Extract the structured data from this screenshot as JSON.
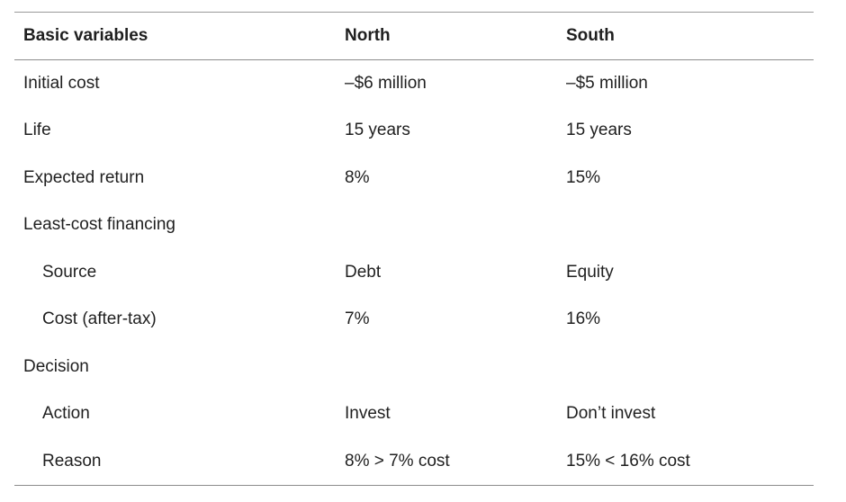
{
  "table": {
    "headers": [
      "Basic variables",
      "North",
      "South"
    ],
    "rows": [
      {
        "label": "Initial cost",
        "north": "–$6 million",
        "south": "–$5 million"
      },
      {
        "label": "Life",
        "north": "15 years",
        "south": "15 years"
      },
      {
        "label": "Expected return",
        "north": "8%",
        "south": "15%"
      },
      {
        "label": "Least-cost financing",
        "north": "",
        "south": ""
      },
      {
        "label": "Source",
        "north": "Debt",
        "south": "Equity"
      },
      {
        "label": "Cost (after-tax)",
        "north": "7%",
        "south": "16%"
      },
      {
        "label": "Decision",
        "north": "",
        "south": ""
      },
      {
        "label": "Action",
        "north": "Invest",
        "south": "Don’t invest"
      },
      {
        "label": "Reason",
        "north": "8% > 7% cost",
        "south": "15% < 16% cost"
      }
    ]
  }
}
